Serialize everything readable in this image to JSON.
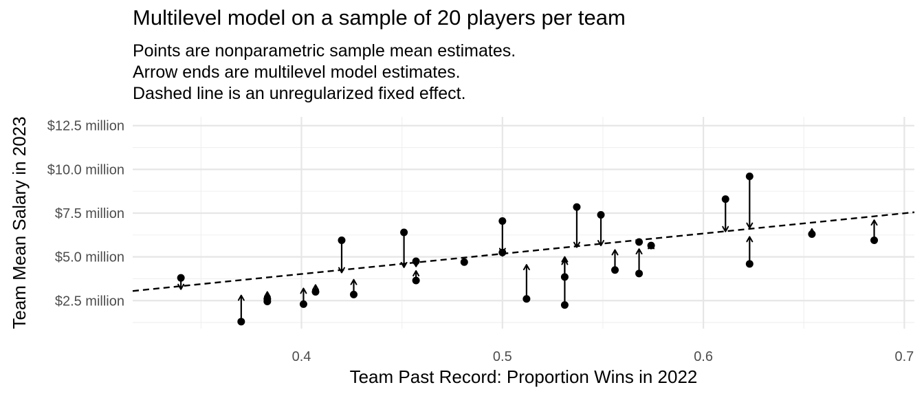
{
  "chart_data": {
    "type": "scatter",
    "title": "Multilevel model on a sample of 20 players per team",
    "subtitle": [
      "Points are nonparametric sample mean estimates.",
      "Arrow ends are multilevel model estimates.",
      "Dashed line is an unregularized fixed effect."
    ],
    "xlabel": "Team Past Record: Proportion Wins in 2022",
    "ylabel": "Team Mean Salary in 2023",
    "xlim": [
      0.316,
      0.705
    ],
    "ylim": [
      0.9,
      13.0
    ],
    "x_ticks": [
      {
        "value": 0.4,
        "label": "0.4"
      },
      {
        "value": 0.5,
        "label": "0.5"
      },
      {
        "value": 0.6,
        "label": "0.6"
      },
      {
        "value": 0.7,
        "label": "0.7"
      }
    ],
    "y_ticks": [
      {
        "value": 2.5,
        "label": "$2.5 million"
      },
      {
        "value": 5.0,
        "label": "$5.0 million"
      },
      {
        "value": 7.5,
        "label": "$7.5 million"
      },
      {
        "value": 10.0,
        "label": "$10.0 million"
      },
      {
        "value": 12.5,
        "label": "$12.5 million"
      }
    ],
    "grid": true,
    "fixed_effect_line": {
      "x": [
        0.316,
        0.705
      ],
      "y": [
        3.05,
        7.55
      ]
    },
    "points": [
      {
        "x": 0.34,
        "y": 3.8,
        "model": 3.15
      },
      {
        "x": 0.37,
        "y": 1.3,
        "model": 2.8
      },
      {
        "x": 0.383,
        "y": 2.6,
        "model": 3.0
      },
      {
        "x": 0.383,
        "y": 2.45,
        "model": 2.85
      },
      {
        "x": 0.401,
        "y": 2.3,
        "model": 3.2
      },
      {
        "x": 0.407,
        "y": 3.0,
        "model": 3.4
      },
      {
        "x": 0.42,
        "y": 5.95,
        "model": 4.1
      },
      {
        "x": 0.426,
        "y": 2.85,
        "model": 3.7
      },
      {
        "x": 0.451,
        "y": 6.4,
        "model": 4.4
      },
      {
        "x": 0.457,
        "y": 4.75,
        "model": 4.45
      },
      {
        "x": 0.457,
        "y": 3.65,
        "model": 4.2
      },
      {
        "x": 0.481,
        "y": 4.7,
        "model": 4.7
      },
      {
        "x": 0.5,
        "y": 7.05,
        "model": 5.2
      },
      {
        "x": 0.5,
        "y": 5.25,
        "model": 5.05
      },
      {
        "x": 0.512,
        "y": 2.6,
        "model": 4.55
      },
      {
        "x": 0.531,
        "y": 3.85,
        "model": 4.85
      },
      {
        "x": 0.531,
        "y": 2.25,
        "model": 5.0
      },
      {
        "x": 0.537,
        "y": 7.85,
        "model": 5.55
      },
      {
        "x": 0.549,
        "y": 7.4,
        "model": 5.65
      },
      {
        "x": 0.556,
        "y": 4.25,
        "model": 5.4
      },
      {
        "x": 0.568,
        "y": 5.85,
        "model": 5.85
      },
      {
        "x": 0.568,
        "y": 4.05,
        "model": 5.45
      },
      {
        "x": 0.574,
        "y": 5.65,
        "model": 5.75
      },
      {
        "x": 0.611,
        "y": 8.3,
        "model": 6.45
      },
      {
        "x": 0.623,
        "y": 9.6,
        "model": 6.65
      },
      {
        "x": 0.623,
        "y": 4.6,
        "model": 6.15
      },
      {
        "x": 0.654,
        "y": 6.3,
        "model": 6.6
      },
      {
        "x": 0.685,
        "y": 5.95,
        "model": 7.1
      }
    ]
  }
}
